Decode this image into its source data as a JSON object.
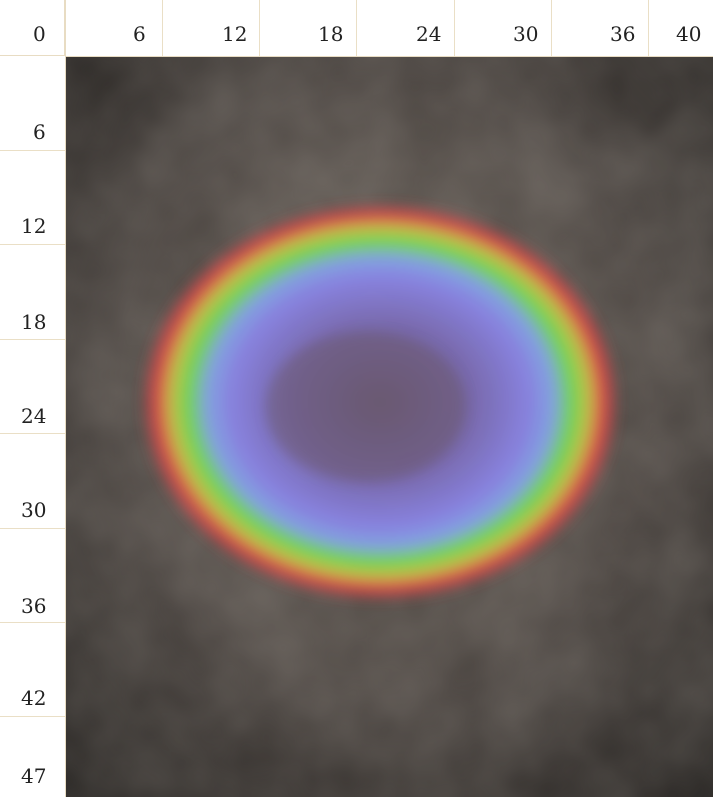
{
  "rulers": {
    "top": [
      "0",
      "6",
      "12",
      "18",
      "24",
      "30",
      "36",
      "40"
    ],
    "left": [
      "6",
      "12",
      "18",
      "24",
      "30",
      "36",
      "42",
      "47"
    ]
  },
  "image": {
    "description_icon": "ring-nebula-photo-icon",
    "colors": {
      "background": "#3a3530",
      "outer_ring": "#d4403a",
      "middle_ring": "#6fd24a",
      "inner_disc": "#7d78d8",
      "center": "#6e5a78"
    }
  }
}
